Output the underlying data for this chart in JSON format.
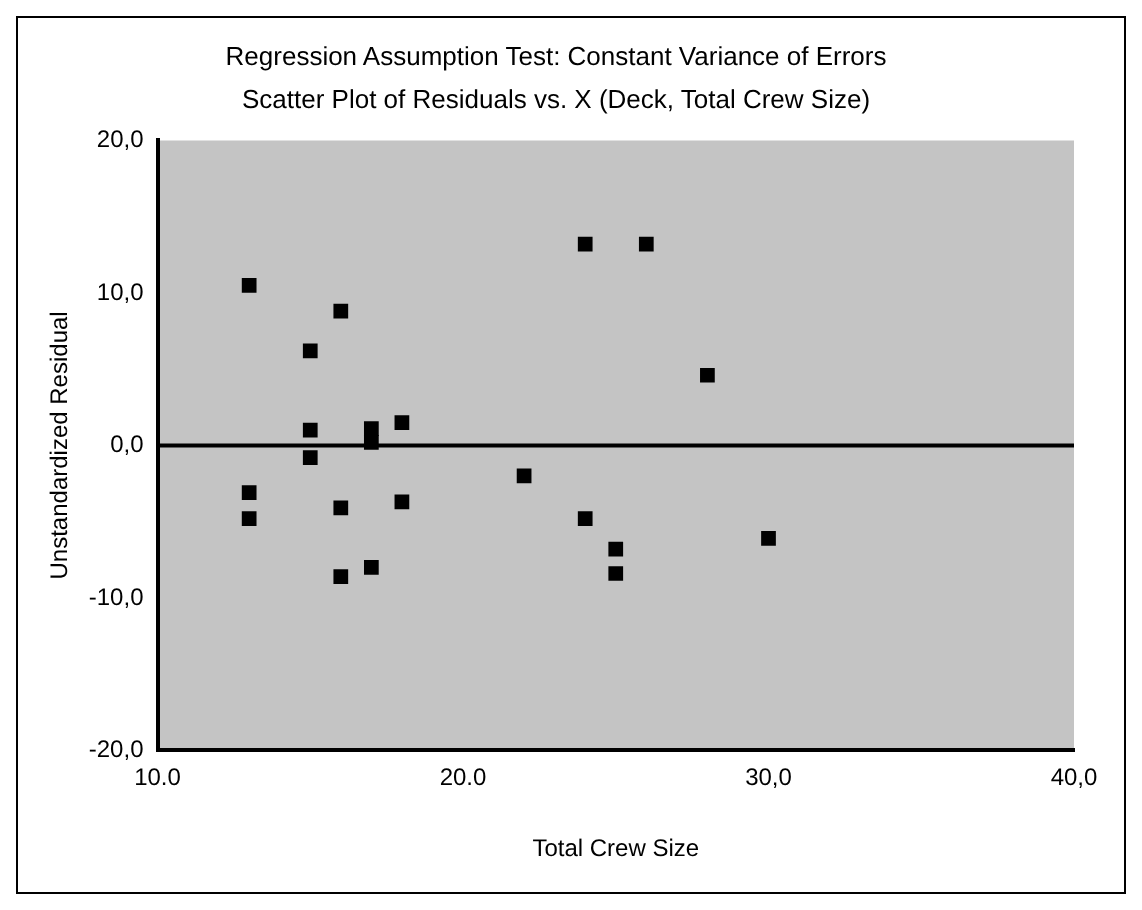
{
  "chart_data": {
    "type": "scatter",
    "title": "Regression Assumption Test: Constant Variance of Errors",
    "subtitle": "Scatter Plot of Residuals vs. X (Deck, Total Crew Size)",
    "xlabel": "Total Crew Size",
    "ylabel": "Unstandardized Residual",
    "x": [
      13,
      15,
      16,
      24,
      26,
      28,
      15,
      15,
      17,
      17,
      18,
      22,
      13,
      13,
      16,
      18,
      16,
      17,
      24,
      25,
      25,
      30
    ],
    "series": [
      {
        "color": "#000000",
        "values": [
          10.5,
          6.2,
          8.8,
          13.2,
          13.2,
          4.6,
          1.0,
          -0.8,
          1.1,
          0.2,
          1.5,
          -2.0,
          -3.1,
          -4.8,
          -4.1,
          -3.7,
          -8.6,
          -8.0,
          -4.8,
          -6.8,
          -8.4,
          -6.1
        ]
      }
    ],
    "xlim": [
      10,
      40
    ],
    "xticks": [
      {
        "value": 10,
        "label": "10.0"
      },
      {
        "value": 20,
        "label": "20.0"
      },
      {
        "value": 30,
        "label": "30,0"
      },
      {
        "value": 40,
        "label": "40,0"
      }
    ],
    "ylim": [
      -20,
      20
    ],
    "yticks": [
      {
        "value": -20,
        "label": "-20,0"
      },
      {
        "value": -10,
        "label": "-10,0"
      },
      {
        "value": 0,
        "label": "0,0"
      },
      {
        "value": 10,
        "label": "10,0"
      },
      {
        "value": 20,
        "label": "20,0"
      }
    ],
    "ref_lines": [
      {
        "axis": "y",
        "value": 0,
        "color": "#000000"
      }
    ],
    "marker": "square",
    "grid": false,
    "legend": false
  }
}
